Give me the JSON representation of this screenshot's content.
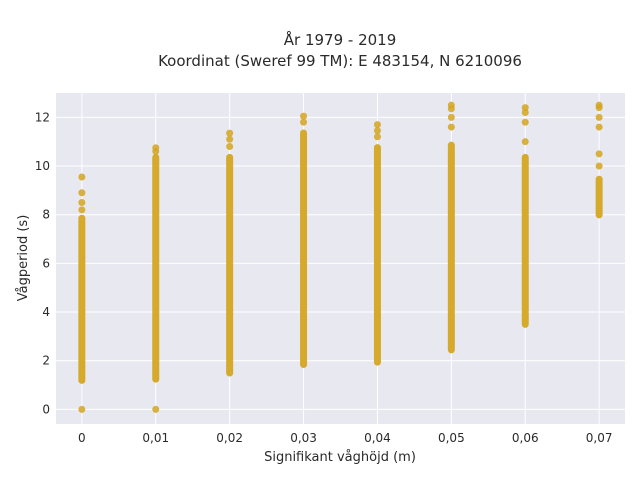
{
  "chart_data": {
    "type": "scatter",
    "title_lines": [
      "År 1979 - 2019",
      "Koordinat (Sweref 99 TM): E 483154, N 6210096"
    ],
    "xlabel": "Signifikant våghöjd (m)",
    "ylabel": "Vågperiod (s)",
    "xlim": [
      -0.0035,
      0.0735
    ],
    "ylim": [
      -0.6,
      13.0
    ],
    "x_ticks": [
      0,
      0.01,
      0.02,
      0.03,
      0.04,
      0.05,
      0.06,
      0.07
    ],
    "x_tick_labels": [
      "0",
      "0,01",
      "0,02",
      "0,03",
      "0,04",
      "0,05",
      "0,06",
      "0,07"
    ],
    "y_ticks": [
      0,
      2,
      4,
      6,
      8,
      10,
      12
    ],
    "y_tick_labels": [
      "0",
      "2",
      "4",
      "6",
      "8",
      "10",
      "12"
    ],
    "grid": true,
    "legend": "none",
    "colors": {
      "marker": "#d4a520",
      "plot_bg": "#e8e8f0",
      "grid": "#ffffff",
      "page_bg": "#ffffff"
    },
    "columns": [
      {
        "x": 0.0,
        "dense_range": [
          1.05,
          8.0
        ],
        "points": [
          0.0,
          8.2,
          8.5,
          8.9,
          9.55
        ]
      },
      {
        "x": 0.01,
        "dense_range": [
          1.1,
          10.5
        ],
        "points": [
          0.0,
          10.6,
          10.75
        ]
      },
      {
        "x": 0.02,
        "dense_range": [
          1.35,
          10.5
        ],
        "points": [
          10.8,
          11.1,
          11.35
        ]
      },
      {
        "x": 0.03,
        "dense_range": [
          1.7,
          11.5
        ],
        "points": [
          11.8,
          12.05
        ]
      },
      {
        "x": 0.04,
        "dense_range": [
          1.8,
          10.9
        ],
        "points": [
          11.2,
          11.45,
          11.7
        ]
      },
      {
        "x": 0.05,
        "dense_range": [
          2.3,
          11.0
        ],
        "points": [
          11.6,
          12.0,
          12.35,
          12.5
        ]
      },
      {
        "x": 0.06,
        "dense_range": [
          3.35,
          10.5
        ],
        "points": [
          11.0,
          11.8,
          12.2,
          12.4
        ]
      },
      {
        "x": 0.07,
        "dense_range": [
          7.85,
          9.6
        ],
        "points": [
          10.0,
          10.5,
          11.6,
          12.0,
          12.4,
          12.5
        ]
      }
    ]
  }
}
